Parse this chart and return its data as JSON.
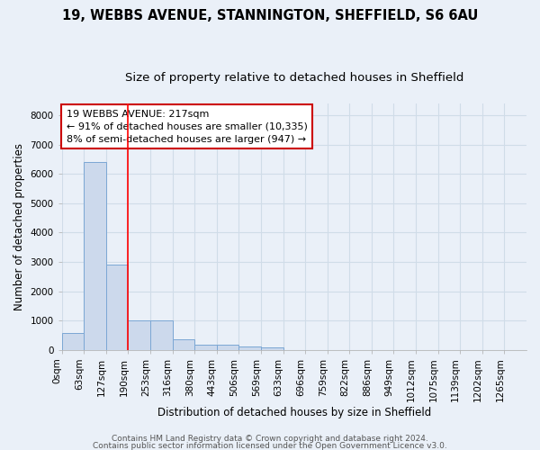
{
  "title1": "19, WEBBS AVENUE, STANNINGTON, SHEFFIELD, S6 6AU",
  "title2": "Size of property relative to detached houses in Sheffield",
  "xlabel": "Distribution of detached houses by size in Sheffield",
  "ylabel": "Number of detached properties",
  "bar_labels": [
    "0sqm",
    "63sqm",
    "127sqm",
    "190sqm",
    "253sqm",
    "316sqm",
    "380sqm",
    "443sqm",
    "506sqm",
    "569sqm",
    "633sqm",
    "696sqm",
    "759sqm",
    "822sqm",
    "886sqm",
    "949sqm",
    "1012sqm",
    "1075sqm",
    "1139sqm",
    "1202sqm",
    "1265sqm"
  ],
  "bar_heights": [
    580,
    6400,
    2920,
    1000,
    1000,
    360,
    160,
    160,
    100,
    80,
    0,
    0,
    0,
    0,
    0,
    0,
    0,
    0,
    0,
    0,
    0
  ],
  "bar_color": "#ccd9ec",
  "bar_edge_color": "#7ba7d4",
  "ylim": [
    0,
    8400
  ],
  "yticks": [
    0,
    1000,
    2000,
    3000,
    4000,
    5000,
    6000,
    7000,
    8000
  ],
  "red_line_x": 3.0,
  "annotation_text": "19 WEBBS AVENUE: 217sqm\n← 91% of detached houses are smaller (10,335)\n8% of semi-detached houses are larger (947) →",
  "annotation_box_color": "#ffffff",
  "annotation_border_color": "#cc0000",
  "footer1": "Contains HM Land Registry data © Crown copyright and database right 2024.",
  "footer2": "Contains public sector information licensed under the Open Government Licence v3.0.",
  "background_color": "#eaf0f8",
  "grid_color": "#d0dce8",
  "title_fontsize": 10.5,
  "subtitle_fontsize": 9.5,
  "axis_label_fontsize": 8.5,
  "tick_fontsize": 7.5,
  "footer_fontsize": 6.5
}
